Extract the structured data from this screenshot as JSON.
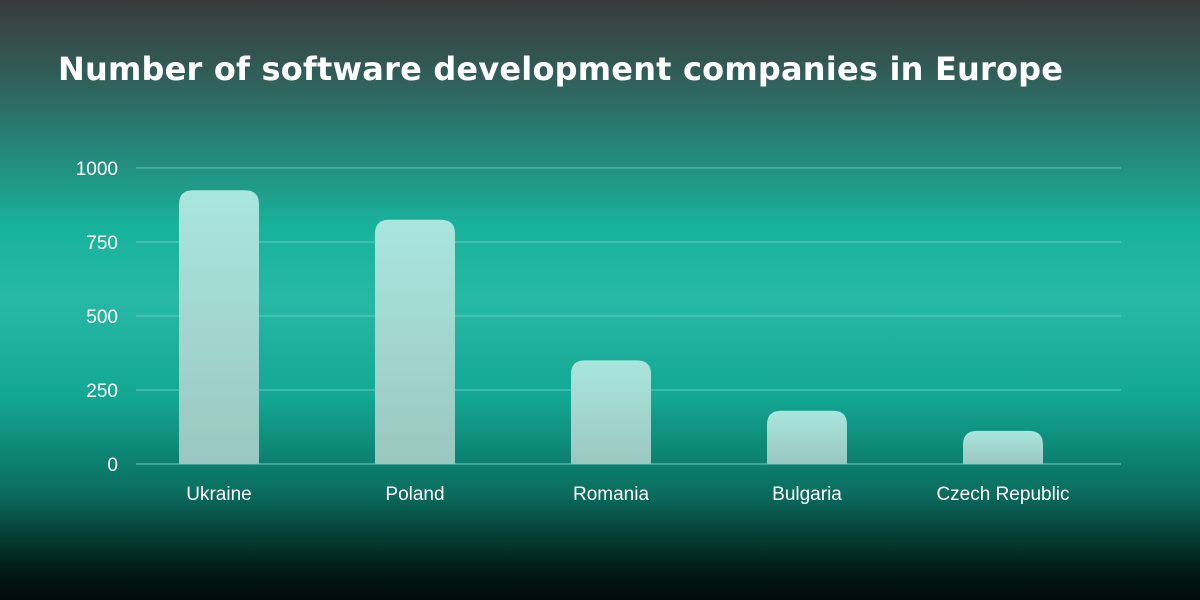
{
  "title": "Number of software development companies in Europe",
  "colors": {
    "bar_top": "#a9e6de",
    "bar_bottom": "#9ac7c0",
    "grid": "#7fd8cc",
    "text": "#ffffff"
  },
  "chart_data": {
    "type": "bar",
    "title": "Number of software development companies in Europe",
    "categories": [
      "Ukraine",
      "Poland",
      "Romania",
      "Bulgaria",
      "Czech Republic"
    ],
    "values": [
      925,
      825,
      350,
      180,
      112
    ],
    "xlabel": "",
    "ylabel": "",
    "ylim": [
      0,
      1000
    ],
    "yticks": [
      "0",
      "250",
      "500",
      "750",
      "1000"
    ],
    "grid": true,
    "legend": "none"
  }
}
